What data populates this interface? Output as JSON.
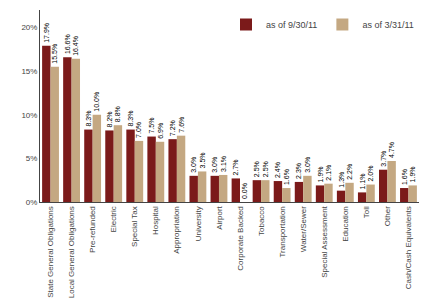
{
  "chart_data": {
    "type": "bar",
    "categories": [
      "State General Obligations",
      "Local General Obligations",
      "Pre-refunded",
      "Electric",
      "Special Tax",
      "Hospital",
      "Appropriation",
      "University",
      "Airport",
      "Corporate Backed",
      "Tobacco",
      "Transportation",
      "Water/Sewer",
      "Special Assessment",
      "Education",
      "Toll",
      "Other",
      "Cash/Cash Equivalents"
    ],
    "series": [
      {
        "name": "as of 9/30/11",
        "color": "#7B1A1A",
        "values": [
          17.9,
          16.6,
          8.3,
          8.2,
          8.3,
          7.5,
          7.2,
          3.0,
          3.0,
          2.7,
          2.5,
          2.4,
          2.3,
          1.9,
          1.3,
          1.1,
          3.7,
          1.6
        ],
        "value_labels": [
          "17.9%",
          "16.6%",
          "8.3%",
          "8.2%",
          "8.3%",
          "7.5%",
          "7.2%",
          "3.0%",
          "3.0%",
          "2.7%",
          "2.5%",
          "2.4%",
          "2.3%",
          "1.9%",
          "1.3%",
          "1.1%",
          "3.7%",
          "1.6%"
        ]
      },
      {
        "name": "as of 3/31/11",
        "color": "#C4A882",
        "values": [
          15.5,
          16.4,
          10.0,
          8.8,
          7.0,
          6.9,
          7.6,
          3.5,
          3.1,
          0.0,
          2.5,
          1.6,
          3.0,
          2.1,
          2.2,
          2.0,
          4.7,
          1.9
        ],
        "value_labels": [
          "15.5%",
          "16.4%",
          "10.0%",
          "8.8%",
          "7.0%",
          "6.9%",
          "7.6%",
          "3.5%",
          "3.1%",
          "0.0%",
          "2.5%",
          "1.6%",
          "3.0%",
          "2.1%",
          "2.2%",
          "2.0%",
          "4.7%",
          "1.9%"
        ]
      }
    ],
    "ylim": [
      0,
      22
    ],
    "yticks": [
      {
        "value": 0,
        "label": "0%"
      },
      {
        "value": 5,
        "label": "5%"
      },
      {
        "value": 10,
        "label": "10%"
      },
      {
        "value": 15,
        "label": "15%"
      },
      {
        "value": 20,
        "label": "20%"
      }
    ],
    "grid": false,
    "legend": "upper right",
    "data_labels": true
  }
}
